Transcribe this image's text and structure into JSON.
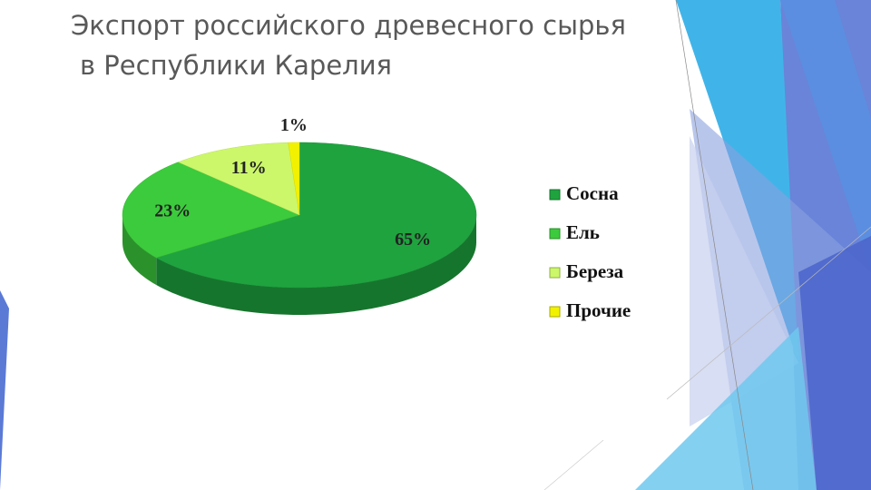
{
  "chart_data": {
    "type": "pie3d",
    "title": [
      "Экспорт российского древесного сырья",
      "в Республики Карелия"
    ],
    "categories": [
      "Сосна",
      "Ель",
      "Береза",
      "Прочие"
    ],
    "values": [
      65,
      23,
      11,
      1
    ],
    "value_labels": [
      "65%",
      "23%",
      "11%",
      "1%"
    ],
    "colors": [
      "#1fa33f",
      "#3ccb3c",
      "#ccf76a",
      "#f2f200"
    ],
    "legend": "right"
  }
}
